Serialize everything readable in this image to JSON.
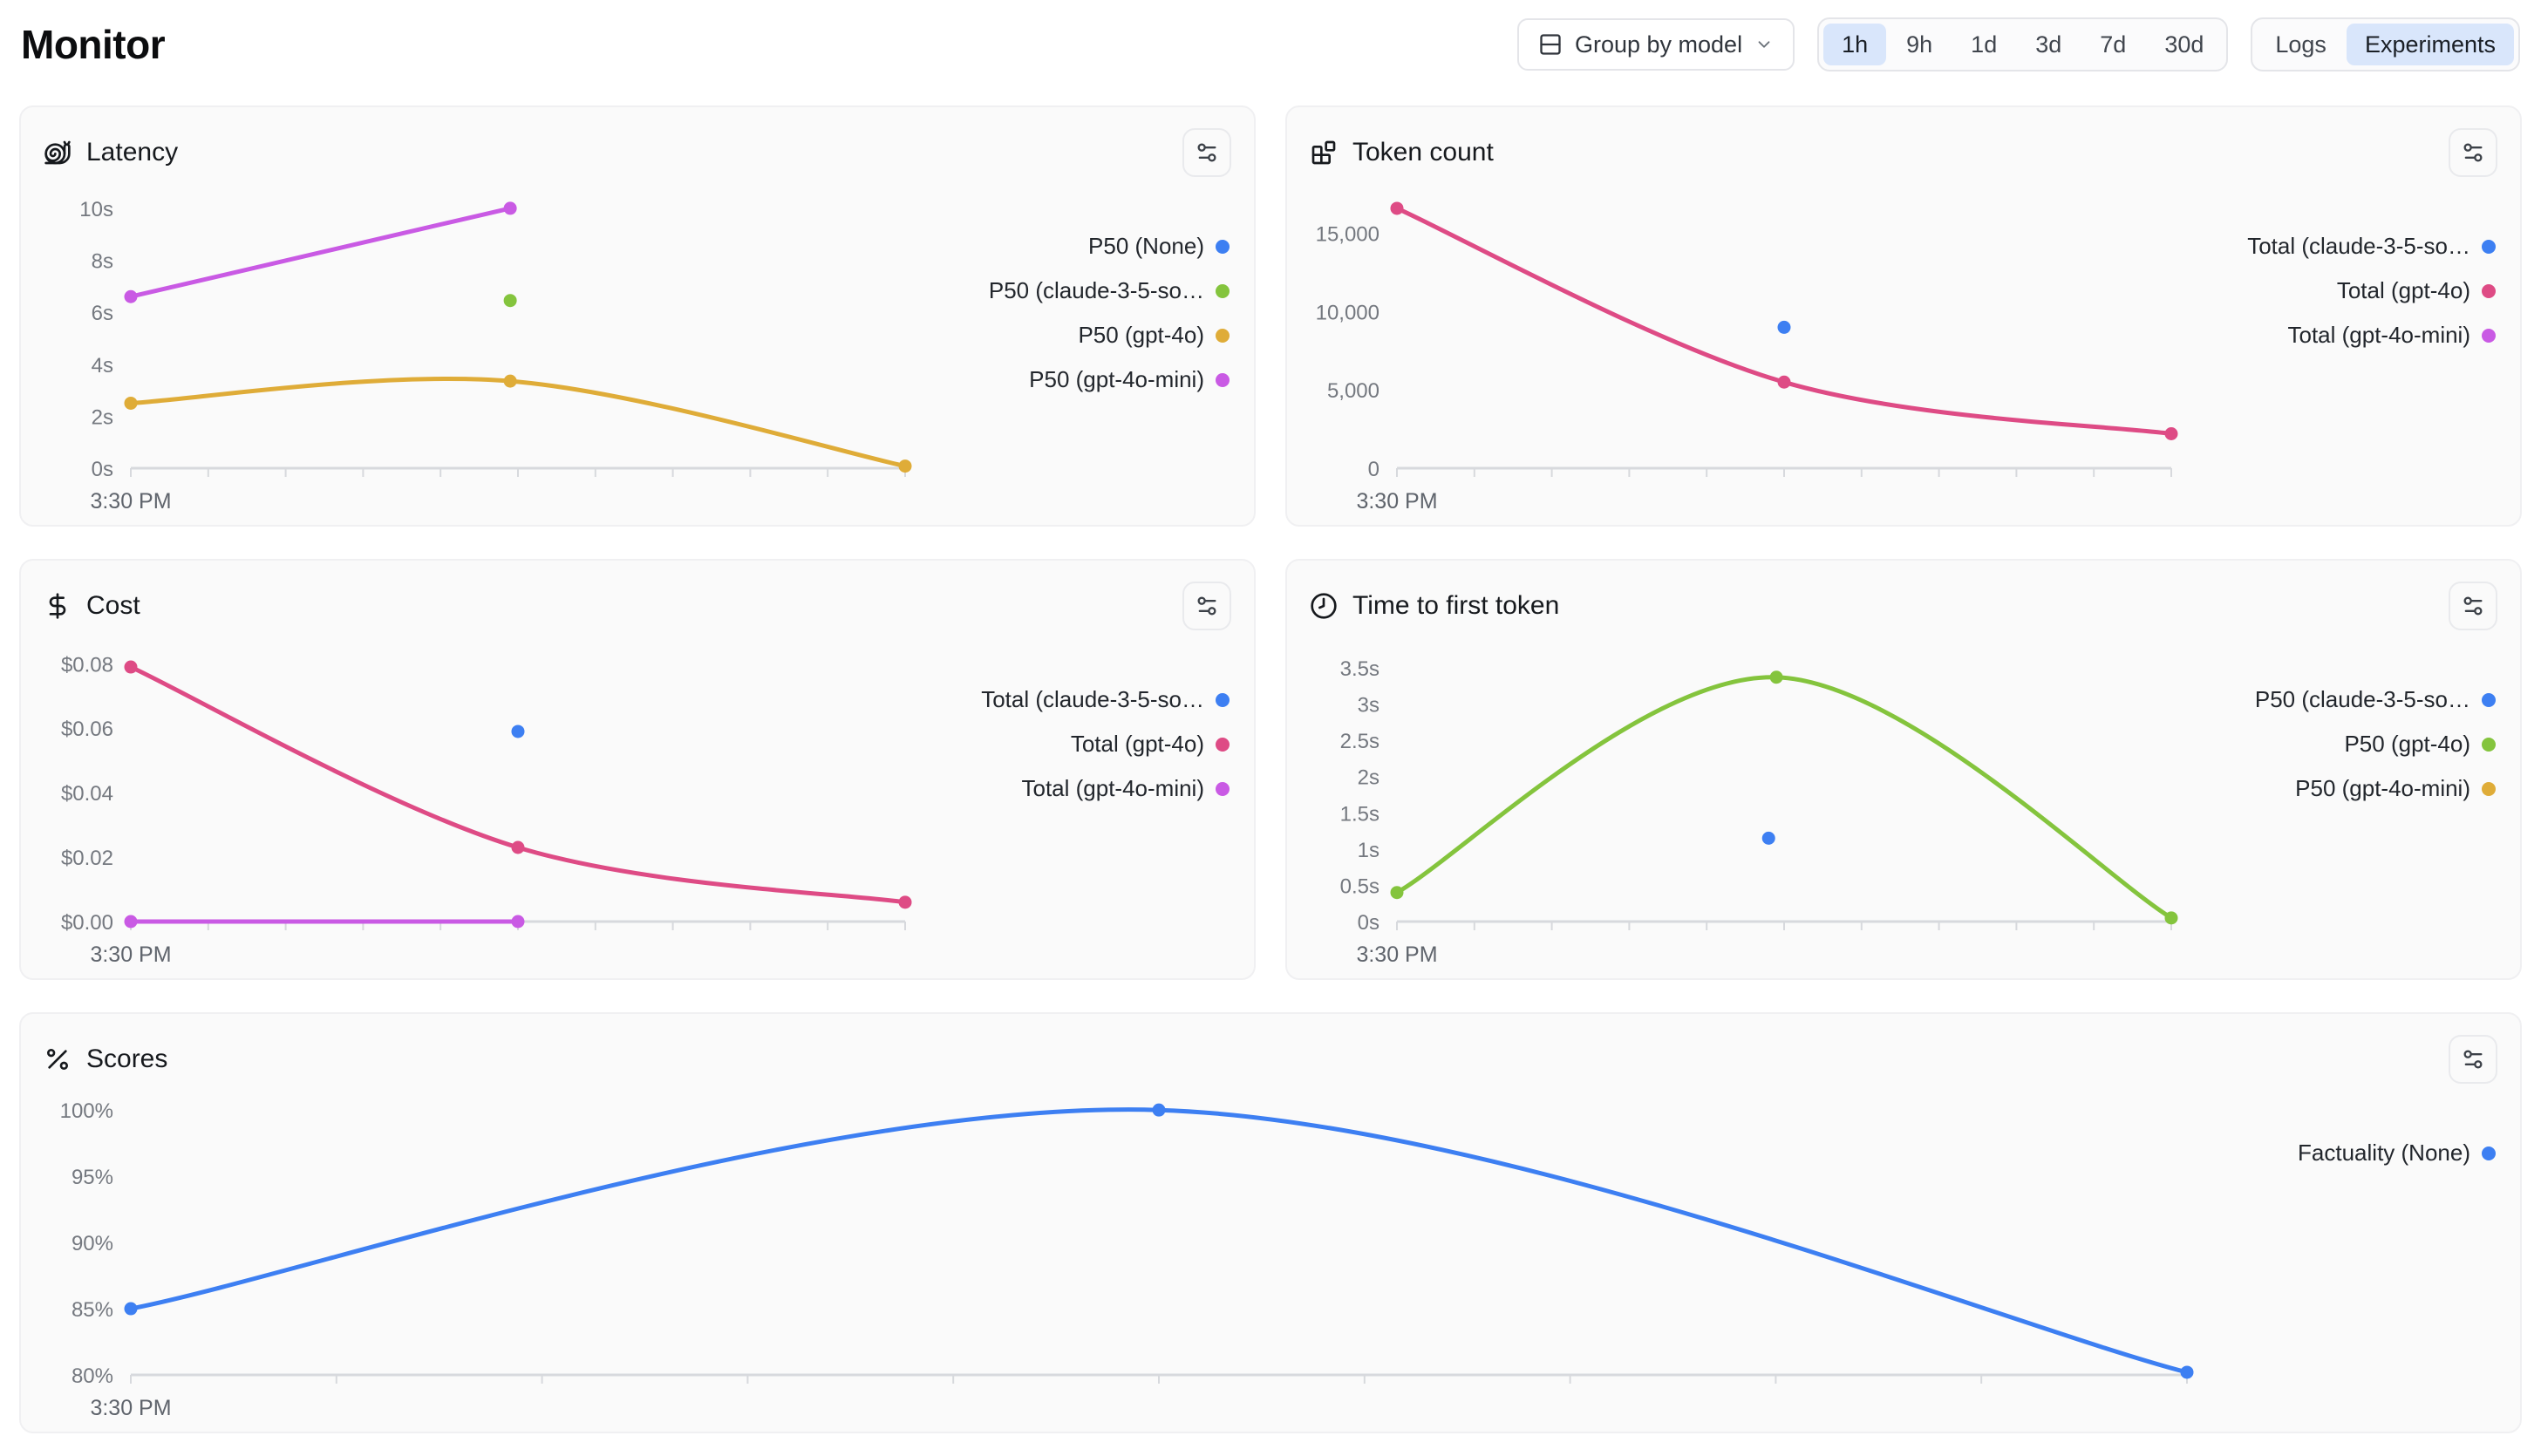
{
  "page": {
    "title": "Monitor"
  },
  "toolbar": {
    "group_by": {
      "label": "Group by model"
    },
    "time_ranges": [
      "1h",
      "9h",
      "1d",
      "3d",
      "7d",
      "30d"
    ],
    "selected_time_range": "1h",
    "modes": [
      "Logs",
      "Experiments"
    ],
    "selected_mode": "Experiments"
  },
  "colors": {
    "blue": "#3d7ff2",
    "pink": "#de4b85",
    "fuchsia": "#c95ae4",
    "green": "#84c43d",
    "amber": "#dfac38",
    "axis_line": "#d7d9dd",
    "tick_label": "#74787f",
    "x_label": "#5f646c",
    "selected_pill_bg": "#d9e6fb",
    "card_bg": "#fafafa"
  },
  "chart_data": [
    {
      "type": "line",
      "title": "Latency",
      "icon": "snail-icon",
      "x_label": "3:30 PM",
      "ylim": [
        0,
        10.6
      ],
      "grid": false,
      "legend_position": "right",
      "yticks": [
        {
          "v": 0,
          "label": "0s"
        },
        {
          "v": 2,
          "label": "2s"
        },
        {
          "v": 4,
          "label": "4s"
        },
        {
          "v": 6,
          "label": "6s"
        },
        {
          "v": 8,
          "label": "8s"
        },
        {
          "v": 10,
          "label": "10s"
        }
      ],
      "series": [
        {
          "name": "P50 (None)",
          "color": "#3d7ff2",
          "points": []
        },
        {
          "name": "P50 (claude-3-5-so…",
          "color": "#84c43d",
          "points": [
            {
              "x": 0.49,
              "y": 6.45
            }
          ]
        },
        {
          "name": "P50 (gpt-4o)",
          "color": "#dfac38",
          "points": [
            {
              "x": 0,
              "y": 2.5
            },
            {
              "x": 0.49,
              "y": 3.35
            },
            {
              "x": 1,
              "y": 0.08
            }
          ]
        },
        {
          "name": "P50 (gpt-4o-mini)",
          "color": "#c95ae4",
          "points": [
            {
              "x": 0,
              "y": 6.6
            },
            {
              "x": 0.49,
              "y": 10
            }
          ]
        }
      ]
    },
    {
      "type": "line",
      "title": "Token count",
      "icon": "blocks-icon",
      "x_label": "3:30 PM",
      "ylim": [
        0,
        17600
      ],
      "grid": false,
      "legend_position": "right",
      "yticks": [
        {
          "v": 0,
          "label": "0"
        },
        {
          "v": 5000,
          "label": "5,000"
        },
        {
          "v": 10000,
          "label": "10,000"
        },
        {
          "v": 15000,
          "label": "15,000"
        }
      ],
      "series": [
        {
          "name": "Total (claude-3-5-so…",
          "color": "#3d7ff2",
          "points": [
            {
              "x": 0.5,
              "y": 9000
            }
          ]
        },
        {
          "name": "Total (gpt-4o)",
          "color": "#de4b85",
          "points": [
            {
              "x": 0,
              "y": 16600
            },
            {
              "x": 0.5,
              "y": 5500
            },
            {
              "x": 1,
              "y": 2200
            }
          ]
        },
        {
          "name": "Total (gpt-4o-mini)",
          "color": "#c95ae4",
          "points": []
        }
      ]
    },
    {
      "type": "line",
      "title": "Cost",
      "icon": "dollar-icon",
      "x_label": "3:30 PM",
      "ylim": [
        0,
        0.0855
      ],
      "grid": false,
      "legend_position": "right",
      "yticks": [
        {
          "v": 0,
          "label": "$0.00"
        },
        {
          "v": 0.02,
          "label": "$0.02"
        },
        {
          "v": 0.04,
          "label": "$0.04"
        },
        {
          "v": 0.06,
          "label": "$0.06"
        },
        {
          "v": 0.08,
          "label": "$0.08"
        }
      ],
      "series": [
        {
          "name": "Total (claude-3-5-so…",
          "color": "#3d7ff2",
          "points": [
            {
              "x": 0.5,
              "y": 0.059
            }
          ]
        },
        {
          "name": "Total (gpt-4o)",
          "color": "#de4b85",
          "points": [
            {
              "x": 0,
              "y": 0.079
            },
            {
              "x": 0.5,
              "y": 0.023
            },
            {
              "x": 1,
              "y": 0.006
            }
          ]
        },
        {
          "name": "Total (gpt-4o-mini)",
          "color": "#c95ae4",
          "points": [
            {
              "x": 0,
              "y": 0
            },
            {
              "x": 0.5,
              "y": 0
            }
          ]
        }
      ]
    },
    {
      "type": "line",
      "title": "Time to first token",
      "icon": "clock-icon",
      "x_label": "3:30 PM",
      "ylim": [
        0,
        3.8
      ],
      "grid": false,
      "legend_position": "right",
      "yticks": [
        {
          "v": 0,
          "label": "0s"
        },
        {
          "v": 0.5,
          "label": "0.5s"
        },
        {
          "v": 1,
          "label": "1s"
        },
        {
          "v": 1.5,
          "label": "1.5s"
        },
        {
          "v": 2,
          "label": "2s"
        },
        {
          "v": 2.5,
          "label": "2.5s"
        },
        {
          "v": 3,
          "label": "3s"
        },
        {
          "v": 3.5,
          "label": "3.5s"
        }
      ],
      "series": [
        {
          "name": "P50 (claude-3-5-so…",
          "color": "#3d7ff2",
          "points": [
            {
              "x": 0.48,
              "y": 1.15
            }
          ]
        },
        {
          "name": "P50 (gpt-4o)",
          "color": "#84c43d",
          "points": [
            {
              "x": 0,
              "y": 0.4
            },
            {
              "x": 0.49,
              "y": 3.37
            },
            {
              "x": 1,
              "y": 0.05
            }
          ]
        },
        {
          "name": "P50 (gpt-4o-mini)",
          "color": "#dfac38",
          "points": []
        }
      ]
    },
    {
      "type": "line",
      "title": "Scores",
      "icon": "percent-icon",
      "x_label": "3:30 PM",
      "ylim": [
        80,
        100.8
      ],
      "grid": false,
      "legend_position": "right",
      "yticks": [
        {
          "v": 80,
          "label": "80%"
        },
        {
          "v": 85,
          "label": "85%"
        },
        {
          "v": 90,
          "label": "90%"
        },
        {
          "v": 95,
          "label": "95%"
        },
        {
          "v": 100,
          "label": "100%"
        }
      ],
      "series": [
        {
          "name": "Factuality (None)",
          "color": "#3d7ff2",
          "points": [
            {
              "x": 0,
              "y": 85
            },
            {
              "x": 0.5,
              "y": 100
            },
            {
              "x": 1,
              "y": 80.2
            }
          ]
        }
      ]
    }
  ]
}
